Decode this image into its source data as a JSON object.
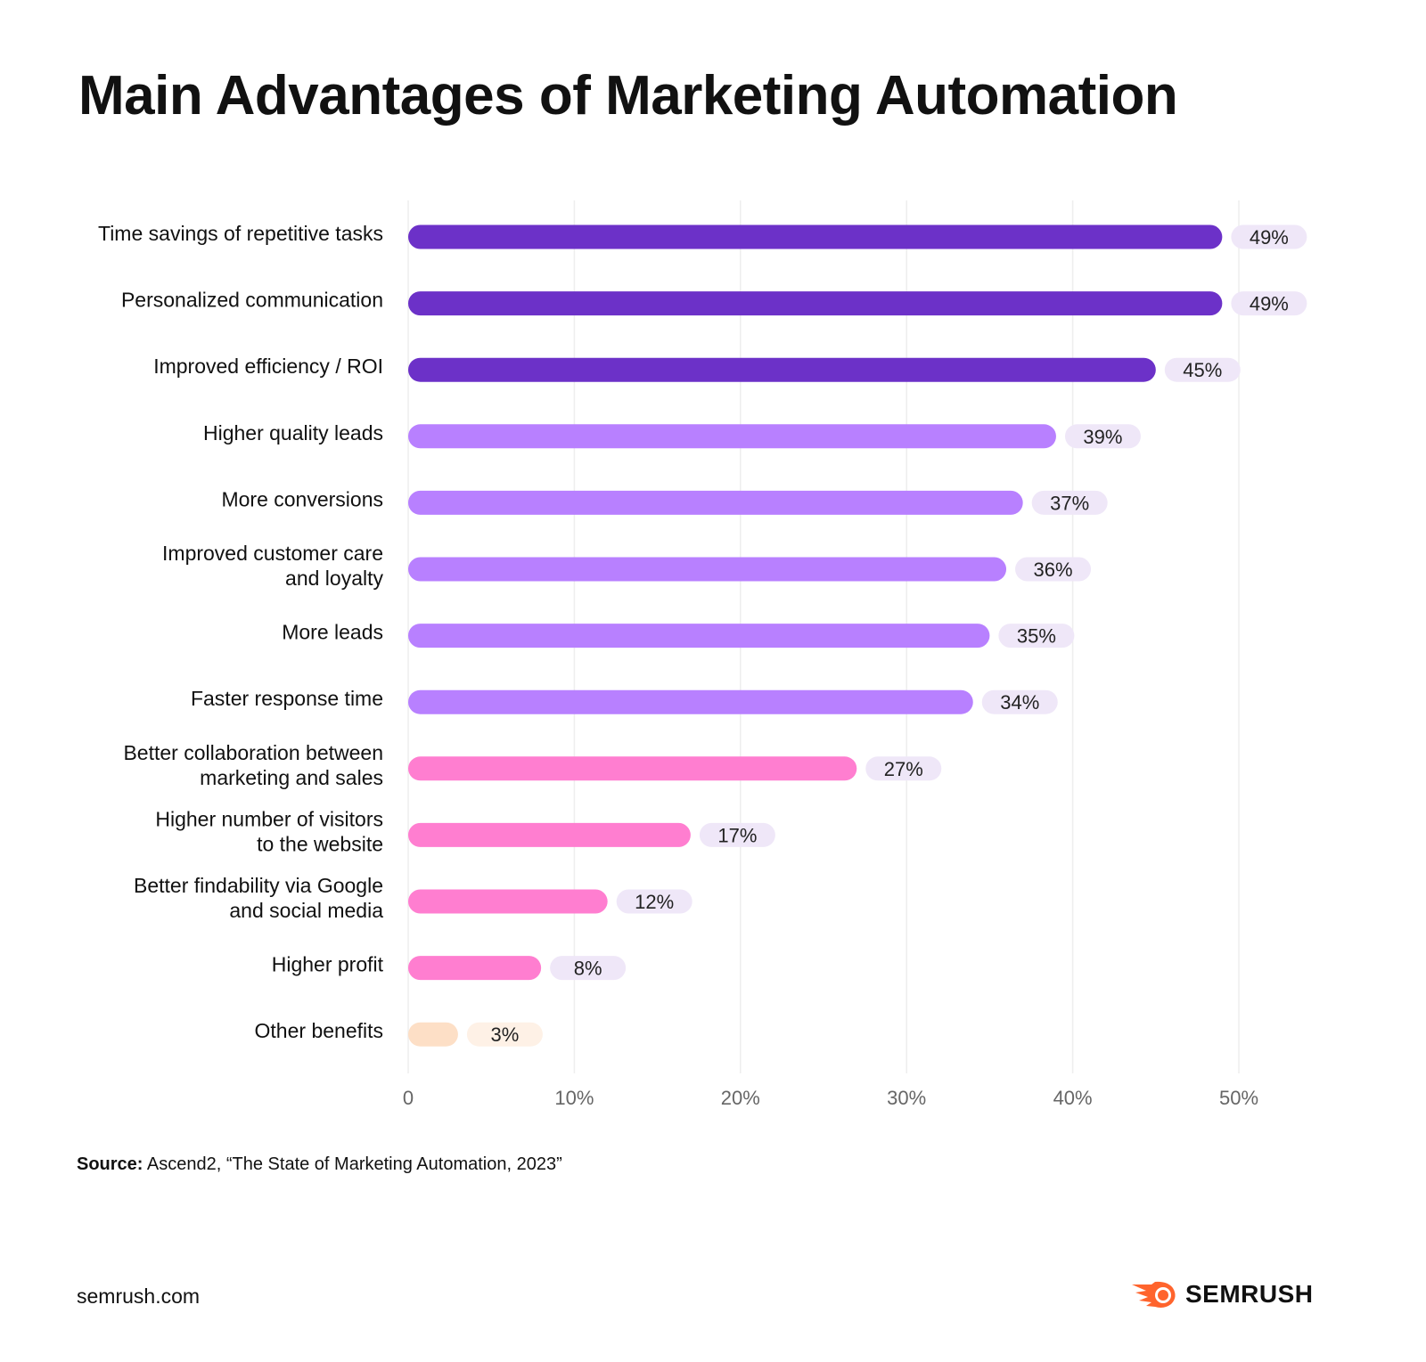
{
  "chart_data": {
    "type": "bar",
    "orientation": "horizontal",
    "title": "Main Advantages of Marketing Automation",
    "categories": [
      [
        "Time savings of repetitive tasks"
      ],
      [
        "Personalized communication"
      ],
      [
        "Improved efficiency / ROI"
      ],
      [
        "Higher quality leads"
      ],
      [
        "More conversions"
      ],
      [
        "Improved customer care",
        "and loyalty"
      ],
      [
        "More leads"
      ],
      [
        "Faster response time"
      ],
      [
        "Better collaboration between",
        "marketing and sales"
      ],
      [
        "Higher number of visitors",
        "to the website"
      ],
      [
        "Better findability via Google",
        "and social media"
      ],
      [
        "Higher profit"
      ],
      [
        "Other benefits"
      ]
    ],
    "values": [
      49,
      49,
      45,
      39,
      37,
      36,
      35,
      34,
      27,
      17,
      12,
      8,
      3
    ],
    "value_labels": [
      "49%",
      "49%",
      "45%",
      "39%",
      "37%",
      "36%",
      "35%",
      "34%",
      "27%",
      "17%",
      "12%",
      "8%",
      "3%"
    ],
    "colors": [
      "#6C31C8",
      "#6C31C8",
      "#6C31C8",
      "#B880FF",
      "#B880FF",
      "#B880FF",
      "#B880FF",
      "#B880FF",
      "#FF7ED0",
      "#FF7ED0",
      "#FF7ED0",
      "#FF7ED0",
      "#FDDFC6"
    ],
    "label_bg": [
      "#EFE7F8",
      "#EFE7F8",
      "#EFE7F8",
      "#EFE7F8",
      "#EFE7F8",
      "#EFE7F8",
      "#EFE7F8",
      "#EFE7F8",
      "#EFE7F8",
      "#EFE7F8",
      "#EFE7F8",
      "#EFE7F8",
      "#FEF1E6"
    ],
    "xticks": [
      0,
      10,
      20,
      30,
      40,
      50
    ],
    "xtick_labels": [
      "0",
      "10%",
      "20%",
      "30%",
      "40%",
      "50%"
    ],
    "xlim": [
      0,
      50
    ],
    "grid": true,
    "xlabel": "",
    "ylabel": ""
  },
  "source_label": "Source:",
  "source_text": " Ascend2, “The State of Marketing Automation, 2023”",
  "site": "semrush.com",
  "brand": "SEMRUSH",
  "brand_color": "#FF642D"
}
